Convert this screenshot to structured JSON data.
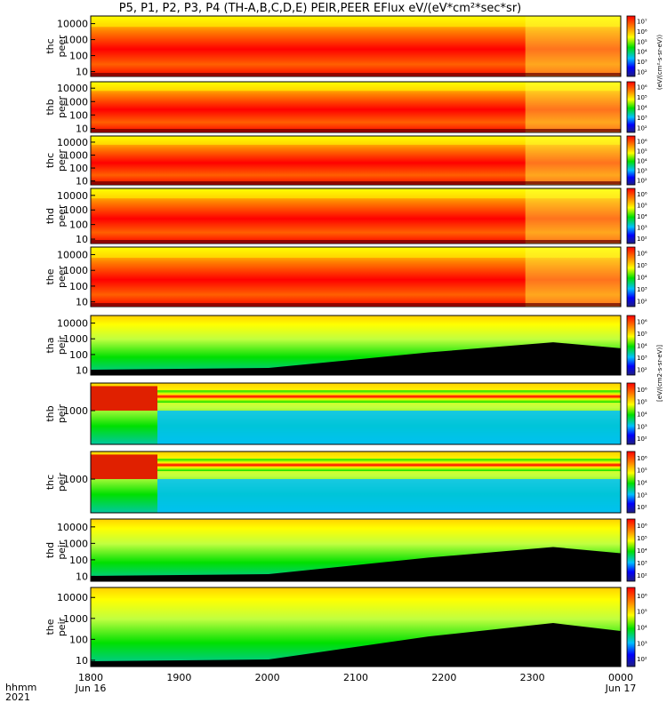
{
  "title": "P5, P1, P2, P3, P4 (TH-A,B,C,D,E) PEIR,PEER EFlux eV/(eV*cm²*sec*sr)",
  "time_axis": {
    "row1_label": "hhmm",
    "row2_label": "2021",
    "ticks": [
      "1800",
      "1900",
      "2000",
      "2100",
      "2200",
      "2300",
      "0000"
    ],
    "dates": [
      "Jun 16",
      "Jun 17"
    ]
  },
  "colorbar_unit": "[eV/(cm2-s-sr-eV)]",
  "colorbar_unit_top": "(eV/(cm²-s-sr-eV))",
  "colors": {
    "high": "#ff0000",
    "mid": "#ffff00",
    "low": "#00e000",
    "lower": "#00c0ff",
    "lowest": "#0000a0",
    "fill": "#000000"
  },
  "chart_data": [
    {
      "type": "heatmap",
      "ylabel": [
        "thc",
        "peer"
      ],
      "yscale": "log",
      "ylim": [
        5,
        30000
      ],
      "ytick_labels": [
        "10",
        "100",
        "1000",
        "10000"
      ],
      "colorbar_ticks": [
        "10²",
        "10³",
        "10⁴",
        "10⁵",
        "10⁶",
        "10⁷"
      ]
    },
    {
      "type": "heatmap",
      "ylabel": [
        "thb",
        "peer"
      ],
      "yscale": "log",
      "ylim": [
        5,
        30000
      ],
      "ytick_labels": [
        "10",
        "100",
        "1000",
        "10000"
      ],
      "colorbar_ticks": [
        "10²",
        "10³",
        "10⁴",
        "10⁵",
        "10⁶"
      ]
    },
    {
      "type": "heatmap",
      "ylabel": [
        "thc",
        "peer"
      ],
      "yscale": "log",
      "ylim": [
        5,
        30000
      ],
      "ytick_labels": [
        "10",
        "100",
        "1000",
        "10000"
      ],
      "colorbar_ticks": [
        "10²",
        "10³",
        "10⁴",
        "10⁵",
        "10⁶"
      ]
    },
    {
      "type": "heatmap",
      "ylabel": [
        "thd",
        "peer"
      ],
      "yscale": "log",
      "ylim": [
        5,
        30000
      ],
      "ytick_labels": [
        "10",
        "100",
        "1000",
        "10000"
      ],
      "colorbar_ticks": [
        "10²",
        "10³",
        "10⁴",
        "10⁵",
        "10⁶"
      ]
    },
    {
      "type": "heatmap",
      "ylabel": [
        "the",
        "peer"
      ],
      "yscale": "log",
      "ylim": [
        5,
        30000
      ],
      "ytick_labels": [
        "10",
        "100",
        "1000",
        "10000"
      ],
      "colorbar_ticks": [
        "10²",
        "10³",
        "10⁴",
        "10⁵",
        "10⁶"
      ]
    },
    {
      "type": "heatmap",
      "ylabel": [
        "tha",
        "peir"
      ],
      "yscale": "log",
      "ylim": [
        5,
        30000
      ],
      "ytick_labels": [
        "10",
        "100",
        "1000",
        "10000"
      ],
      "colorbar_ticks": [
        "10²",
        "10³",
        "10⁴",
        "10⁵",
        "10⁶"
      ]
    },
    {
      "type": "heatmap",
      "ylabel": [
        "thb",
        "peir"
      ],
      "yscale": "log",
      "ylim": [
        5,
        30000
      ],
      "ytick_labels": [
        "1000"
      ],
      "colorbar_ticks": [
        "10²",
        "10³",
        "10⁴",
        "10⁵",
        "10⁶"
      ]
    },
    {
      "type": "heatmap",
      "ylabel": [
        "thc",
        "peir"
      ],
      "yscale": "log",
      "ylim": [
        5,
        30000
      ],
      "ytick_labels": [
        "1000"
      ],
      "colorbar_ticks": [
        "10²",
        "10³",
        "10⁴",
        "10⁵",
        "10⁶"
      ]
    },
    {
      "type": "heatmap",
      "ylabel": [
        "thd",
        "peir"
      ],
      "yscale": "log",
      "ylim": [
        5,
        30000
      ],
      "ytick_labels": [
        "10",
        "100",
        "1000",
        "10000"
      ],
      "colorbar_ticks": [
        "10²",
        "10³",
        "10⁴",
        "10⁵",
        "10⁶"
      ]
    },
    {
      "type": "heatmap",
      "ylabel": [
        "the",
        "peir"
      ],
      "yscale": "log",
      "ylim": [
        5,
        30000
      ],
      "ytick_labels": [
        "10",
        "100",
        "1000",
        "10000"
      ],
      "colorbar_ticks": [
        "10²",
        "10³",
        "10⁴",
        "10⁵",
        "10⁶"
      ]
    }
  ]
}
